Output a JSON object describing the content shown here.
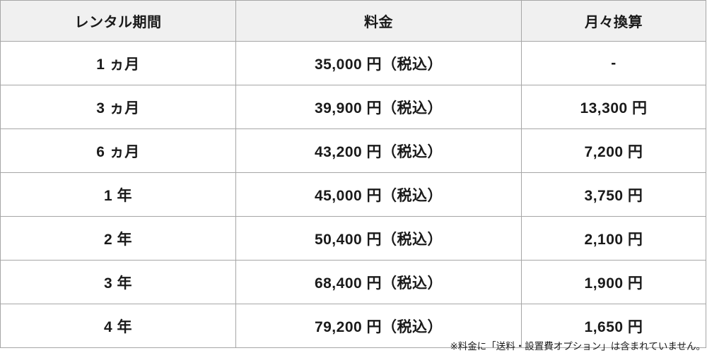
{
  "colors": {
    "accent_red": "#e8392c",
    "header_background": "#f0f0f0",
    "border": "#a6a6a6",
    "text": "#1a1a1a"
  },
  "table": {
    "columns": [
      {
        "label": "レンタル期間"
      },
      {
        "label": "料金"
      },
      {
        "label": "月々換算"
      }
    ],
    "rows": [
      {
        "period": "1 ヵ月",
        "fee": "35,000 円（税込）",
        "monthly": "-"
      },
      {
        "period": "3 ヵ月",
        "fee": "39,900 円（税込）",
        "monthly": "13,300 円"
      },
      {
        "period": "6 ヵ月",
        "fee": "43,200 円（税込）",
        "monthly": "7,200 円"
      },
      {
        "period": "1 年",
        "fee": "45,000 円（税込）",
        "monthly": "3,750 円"
      },
      {
        "period": "2 年",
        "fee": "50,400 円（税込）",
        "monthly": "2,100 円"
      },
      {
        "period": "3 年",
        "fee": "68,400 円（税込）",
        "monthly": "1,900 円"
      },
      {
        "period": "4 年",
        "fee": "79,200 円（税込）",
        "monthly": "1,650 円"
      }
    ]
  },
  "footnote": "※料金に「送料・設置費オプション」は含まれていません。",
  "chart_data": {
    "type": "table",
    "title": "",
    "columns": [
      "レンタル期間",
      "料金",
      "月々換算"
    ],
    "rows": [
      [
        "1 ヵ月",
        "35,000 円（税込）",
        "-"
      ],
      [
        "3 ヵ月",
        "39,900 円（税込）",
        "13,300 円"
      ],
      [
        "6 ヵ月",
        "43,200 円（税込）",
        "7,200 円"
      ],
      [
        "1 年",
        "45,000 円（税込）",
        "3,750 円"
      ],
      [
        "2 年",
        "50,400 円（税込）",
        "2,100 円"
      ],
      [
        "3 年",
        "68,400 円（税込）",
        "1,900 円"
      ],
      [
        "4 年",
        "79,200 円（税込）",
        "1,650 円"
      ]
    ],
    "notes": {
      "monthly_column_color": "#e8392c",
      "footnote": "※料金に「送料・設置費オプション」は含まれていません。"
    }
  }
}
